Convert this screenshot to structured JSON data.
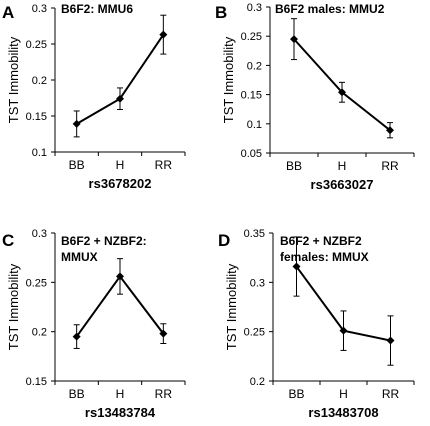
{
  "chart_data": [
    {
      "type": "line",
      "panel_letter": "A",
      "title": "B6F2: MMU6",
      "categories": [
        "BB",
        "H",
        "RR"
      ],
      "values": [
        0.139,
        0.174,
        0.263
      ],
      "errors": [
        0.018,
        0.015,
        0.027
      ],
      "xlabel": "rs3678202",
      "ylabel": "TST Immobility",
      "ylim": [
        0.1,
        0.3
      ],
      "yticks": [
        0.1,
        0.15,
        0.2,
        0.25,
        0.3
      ],
      "ytick_labels": [
        "0.1",
        "0.15",
        "0.2",
        "0.25",
        "0.3"
      ],
      "grid": false
    },
    {
      "type": "line",
      "panel_letter": "B",
      "title": "B6F2 males: MMU2",
      "categories": [
        "BB",
        "H",
        "RR"
      ],
      "values": [
        0.245,
        0.154,
        0.089
      ],
      "errors": [
        0.035,
        0.017,
        0.013
      ],
      "xlabel": "rs3663027",
      "ylabel": "TST Immobility",
      "ylim": [
        0.05,
        0.3
      ],
      "yticks": [
        0.05,
        0.1,
        0.15,
        0.2,
        0.25,
        0.3
      ],
      "ytick_labels": [
        "0.05",
        "0.1",
        "0.15",
        "0.2",
        "0.25",
        "0.3"
      ],
      "grid": false
    },
    {
      "type": "line",
      "panel_letter": "C",
      "title": "B6F2 + NZBF2:",
      "title2": "MMUX",
      "categories": [
        "BB",
        "H",
        "RR"
      ],
      "values": [
        0.195,
        0.256,
        0.198
      ],
      "errors": [
        0.012,
        0.018,
        0.01
      ],
      "xlabel": "rs13483784",
      "ylabel": "TST Immobility",
      "ylim": [
        0.15,
        0.3
      ],
      "yticks": [
        0.15,
        0.2,
        0.25,
        0.3
      ],
      "ytick_labels": [
        "0.15",
        "0.2",
        "0.25",
        "0.3"
      ],
      "grid": false
    },
    {
      "type": "line",
      "panel_letter": "D",
      "title": "B6F2 + NZBF2",
      "title2": "females: MMUX",
      "categories": [
        "BB",
        "H",
        "RR"
      ],
      "values": [
        0.316,
        0.251,
        0.241
      ],
      "errors": [
        0.03,
        0.02,
        0.025
      ],
      "xlabel": "rs13483708",
      "ylabel": "TST Immobility",
      "ylim": [
        0.2,
        0.35
      ],
      "yticks": [
        0.2,
        0.25,
        0.3,
        0.35
      ],
      "ytick_labels": [
        "0.2",
        "0.25",
        "0.3",
        "0.35"
      ],
      "grid": false
    }
  ]
}
